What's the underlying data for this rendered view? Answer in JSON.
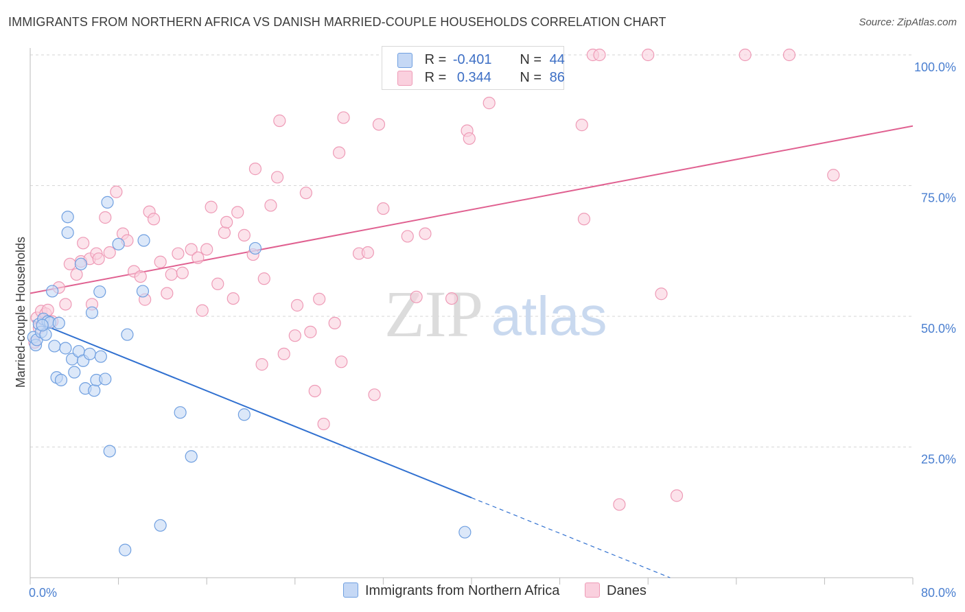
{
  "title": "IMMIGRANTS FROM NORTHERN AFRICA VS DANISH MARRIED-COUPLE HOUSEHOLDS CORRELATION CHART",
  "source": "Source: ZipAtlas.com",
  "watermark": {
    "zip": "ZIP",
    "atlas": "atlas"
  },
  "legend": {
    "r_label": "R =",
    "n_label": "N =",
    "series1": {
      "r": "-0.401",
      "n": "44"
    },
    "series2": {
      "r": "0.344",
      "n": "86"
    }
  },
  "chart_data": {
    "type": "scatter",
    "title": "IMMIGRANTS FROM NORTHERN AFRICA VS DANISH MARRIED-COUPLE HOUSEHOLDS CORRELATION CHART",
    "xlabel": "",
    "ylabel": "Married-couple Households",
    "xlim": [
      0,
      80
    ],
    "ylim": [
      0,
      105
    ],
    "x_tick_labels": [
      {
        "value": 0,
        "label": "0.0%"
      },
      {
        "value": 80,
        "label": "80.0%"
      }
    ],
    "y_tick_labels": [
      {
        "value": 25,
        "label": "25.0%"
      },
      {
        "value": 50,
        "label": "50.0%"
      },
      {
        "value": 75,
        "label": "75.0%"
      },
      {
        "value": 100,
        "label": "100.0%"
      }
    ],
    "grid": true,
    "legend_position": "top-center",
    "series": [
      {
        "name": "Immigrants from Northern Africa",
        "color": "#6f9fe0",
        "fill": "#c5d8f5",
        "line_color": "#3070d0",
        "trend": {
          "x0": 0.2,
          "y0": 49.2,
          "x1": 40,
          "y1": 15.3,
          "dash_x1": 58,
          "dash_y1": 0
        },
        "points": [
          [
            0.3,
            46
          ],
          [
            0.5,
            44.5
          ],
          [
            0.6,
            45.5
          ],
          [
            0.8,
            48.5
          ],
          [
            1.0,
            47
          ],
          [
            1.2,
            49.5
          ],
          [
            1.4,
            46.5
          ],
          [
            1.6,
            49
          ],
          [
            1.8,
            48.8
          ],
          [
            2.0,
            54.8
          ],
          [
            2.2,
            44.3
          ],
          [
            2.4,
            38.3
          ],
          [
            2.6,
            48.7
          ],
          [
            2.8,
            37.8
          ],
          [
            3.2,
            43.9
          ],
          [
            3.4,
            69
          ],
          [
            3.4,
            66
          ],
          [
            3.8,
            41.8
          ],
          [
            4.0,
            39.3
          ],
          [
            4.4,
            43.3
          ],
          [
            4.6,
            60
          ],
          [
            4.8,
            41.5
          ],
          [
            5.0,
            36.2
          ],
          [
            5.4,
            42.8
          ],
          [
            5.6,
            50.7
          ],
          [
            5.8,
            35.8
          ],
          [
            6.0,
            37.8
          ],
          [
            6.3,
            54.7
          ],
          [
            6.4,
            42.3
          ],
          [
            6.8,
            38
          ],
          [
            7.0,
            71.8
          ],
          [
            7.2,
            24.2
          ],
          [
            8.0,
            63.8
          ],
          [
            8.6,
            5.3
          ],
          [
            8.8,
            46.5
          ],
          [
            10.2,
            54.8
          ],
          [
            10.3,
            64.5
          ],
          [
            11.8,
            10
          ],
          [
            13.6,
            31.6
          ],
          [
            14.6,
            23.2
          ],
          [
            19.4,
            31.2
          ],
          [
            20.4,
            63
          ],
          [
            39.4,
            8.7
          ],
          [
            1.1,
            48.3
          ]
        ]
      },
      {
        "name": "Danes",
        "color": "#ee9ab6",
        "fill": "#fad0de",
        "line_color": "#e06090",
        "trend": {
          "x0": 0,
          "y0": 54.4,
          "x1": 80,
          "y1": 86.4
        },
        "points": [
          [
            0.4,
            45
          ],
          [
            0.6,
            49.7
          ],
          [
            0.8,
            47.8
          ],
          [
            1.0,
            51
          ],
          [
            1.4,
            50.5
          ],
          [
            1.6,
            51.2
          ],
          [
            2.0,
            49
          ],
          [
            2.6,
            55.5
          ],
          [
            3.2,
            52.3
          ],
          [
            3.6,
            60
          ],
          [
            4.2,
            58
          ],
          [
            4.6,
            60.5
          ],
          [
            4.8,
            64
          ],
          [
            5.4,
            61
          ],
          [
            5.6,
            52.3
          ],
          [
            6.0,
            62
          ],
          [
            6.2,
            61
          ],
          [
            6.8,
            68.9
          ],
          [
            7.2,
            62.2
          ],
          [
            7.8,
            73.8
          ],
          [
            8.4,
            65.8
          ],
          [
            8.8,
            64.5
          ],
          [
            9.4,
            58.6
          ],
          [
            10.0,
            57.6
          ],
          [
            10.4,
            53.2
          ],
          [
            10.8,
            70
          ],
          [
            11.2,
            68.6
          ],
          [
            11.8,
            60.4
          ],
          [
            12.4,
            54.4
          ],
          [
            12.8,
            58
          ],
          [
            13.4,
            62
          ],
          [
            13.8,
            58.3
          ],
          [
            14.6,
            62.8
          ],
          [
            15.2,
            61.2
          ],
          [
            15.6,
            51.1
          ],
          [
            16.0,
            62.8
          ],
          [
            16.4,
            70.9
          ],
          [
            17.0,
            56.2
          ],
          [
            17.6,
            66
          ],
          [
            17.8,
            68
          ],
          [
            18.4,
            53.4
          ],
          [
            18.8,
            69.9
          ],
          [
            19.4,
            65.5
          ],
          [
            20.2,
            61.8
          ],
          [
            20.4,
            78.2
          ],
          [
            21.0,
            40.8
          ],
          [
            21.2,
            57.2
          ],
          [
            21.8,
            71.2
          ],
          [
            22.4,
            76.6
          ],
          [
            22.6,
            87.4
          ],
          [
            23.0,
            42.8
          ],
          [
            24.0,
            46.3
          ],
          [
            24.2,
            52.1
          ],
          [
            25.0,
            73.6
          ],
          [
            25.4,
            47
          ],
          [
            25.8,
            35.7
          ],
          [
            26.2,
            53.3
          ],
          [
            26.6,
            29.4
          ],
          [
            27.6,
            48.7
          ],
          [
            28.0,
            81.3
          ],
          [
            28.2,
            41.3
          ],
          [
            28.4,
            88
          ],
          [
            29.8,
            62
          ],
          [
            30.6,
            62.2
          ],
          [
            31.2,
            35
          ],
          [
            31.6,
            86.7
          ],
          [
            32.0,
            70.6
          ],
          [
            34.2,
            65.3
          ],
          [
            35.0,
            53.7
          ],
          [
            35.8,
            65.8
          ],
          [
            37.4,
            94.5
          ],
          [
            38.2,
            53.4
          ],
          [
            38.6,
            98.3
          ],
          [
            39.6,
            85.5
          ],
          [
            39.8,
            84
          ],
          [
            41.6,
            90.8
          ],
          [
            45.6,
            99.8
          ],
          [
            46.4,
            100
          ],
          [
            50.0,
            86.6
          ],
          [
            50.2,
            68.6
          ],
          [
            51.0,
            100
          ],
          [
            51.6,
            100
          ],
          [
            53.4,
            14
          ],
          [
            56.0,
            100
          ],
          [
            57.2,
            54.3
          ],
          [
            58.6,
            15.7
          ],
          [
            64.8,
            100
          ],
          [
            68.8,
            100
          ],
          [
            72.8,
            77
          ]
        ]
      }
    ]
  },
  "bottom_legend": {
    "item1": "Immigrants from Northern Africa",
    "item2": "Danes"
  }
}
